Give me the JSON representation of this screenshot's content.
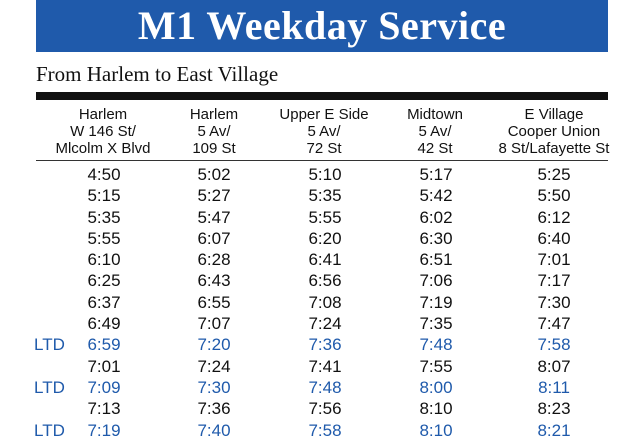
{
  "title": "M1 Weekday Service",
  "subtitle": "From Harlem to East Village",
  "columns": [
    {
      "lines": [
        "Harlem",
        "W 146 St/",
        "Mlcolm X Blvd"
      ]
    },
    {
      "lines": [
        "Harlem",
        "5 Av/",
        "109 St"
      ]
    },
    {
      "lines": [
        "Upper E Side",
        "5 Av/",
        "72 St"
      ]
    },
    {
      "lines": [
        "Midtown",
        "5 Av/",
        "42 St"
      ]
    },
    {
      "lines": [
        "E Village",
        "Cooper Union",
        "8 St/Lafayette St"
      ]
    }
  ],
  "ltd_label": "LTD",
  "colors": {
    "banner": "#1f5aab",
    "ltd_text": "#1f5aab",
    "text": "#111111"
  },
  "rows": [
    {
      "ltd": false,
      "times": [
        "4:50",
        "5:02",
        "5:10",
        "5:17",
        "5:25"
      ]
    },
    {
      "ltd": false,
      "times": [
        "5:15",
        "5:27",
        "5:35",
        "5:42",
        "5:50"
      ]
    },
    {
      "ltd": false,
      "times": [
        "5:35",
        "5:47",
        "5:55",
        "6:02",
        "6:12"
      ]
    },
    {
      "ltd": false,
      "times": [
        "5:55",
        "6:07",
        "6:20",
        "6:30",
        "6:40"
      ]
    },
    {
      "ltd": false,
      "times": [
        "6:10",
        "6:28",
        "6:41",
        "6:51",
        "7:01"
      ]
    },
    {
      "ltd": false,
      "times": [
        "6:25",
        "6:43",
        "6:56",
        "7:06",
        "7:17"
      ]
    },
    {
      "ltd": false,
      "times": [
        "6:37",
        "6:55",
        "7:08",
        "7:19",
        "7:30"
      ]
    },
    {
      "ltd": false,
      "times": [
        "6:49",
        "7:07",
        "7:24",
        "7:35",
        "7:47"
      ]
    },
    {
      "ltd": true,
      "times": [
        "6:59",
        "7:20",
        "7:36",
        "7:48",
        "7:58"
      ]
    },
    {
      "ltd": false,
      "times": [
        "7:01",
        "7:24",
        "7:41",
        "7:55",
        "8:07"
      ]
    },
    {
      "ltd": true,
      "times": [
        "7:09",
        "7:30",
        "7:48",
        "8:00",
        "8:11"
      ]
    },
    {
      "ltd": false,
      "times": [
        "7:13",
        "7:36",
        "7:56",
        "8:10",
        "8:23"
      ]
    },
    {
      "ltd": true,
      "times": [
        "7:19",
        "7:40",
        "7:58",
        "8:10",
        "8:21"
      ]
    }
  ]
}
